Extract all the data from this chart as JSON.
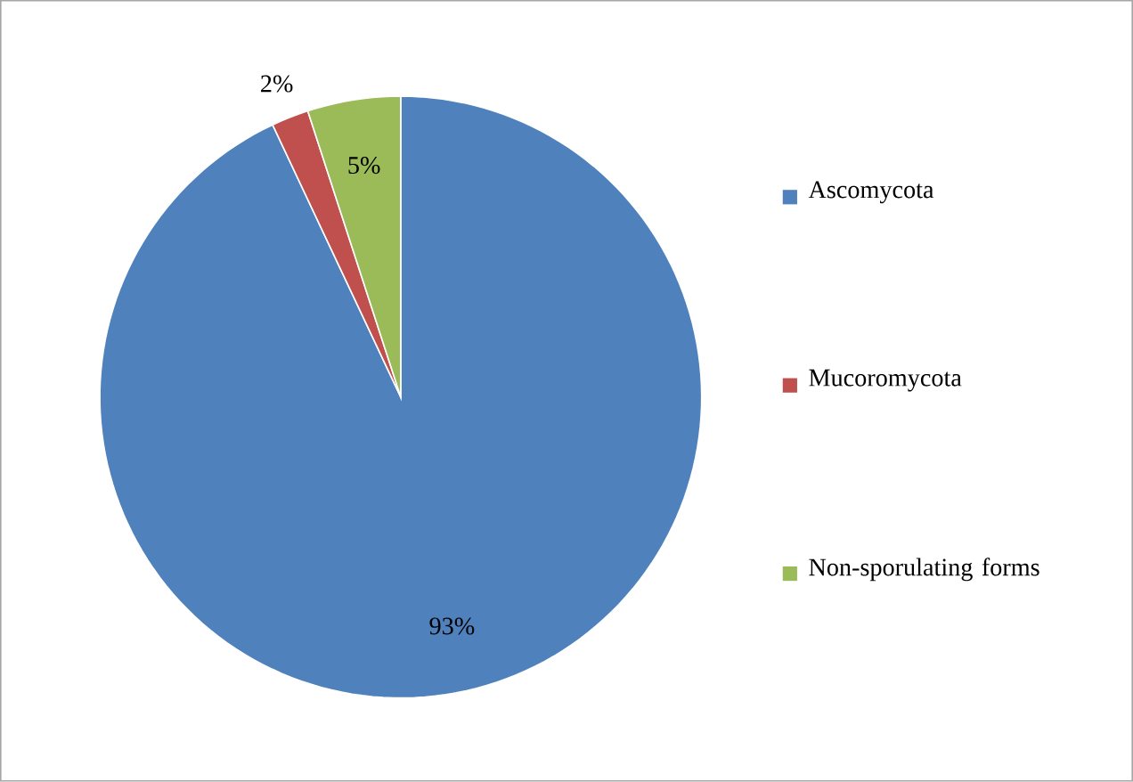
{
  "chart_data": {
    "type": "pie",
    "categories": [
      "Ascomycota",
      "Mucoromycota",
      "Non-sporulating forms"
    ],
    "values": [
      93,
      2,
      5
    ],
    "colors": [
      "#4f81bd",
      "#c0504d",
      "#9bbb59"
    ],
    "value_labels": [
      "93%",
      "2%",
      "5%"
    ],
    "legend": "right"
  }
}
